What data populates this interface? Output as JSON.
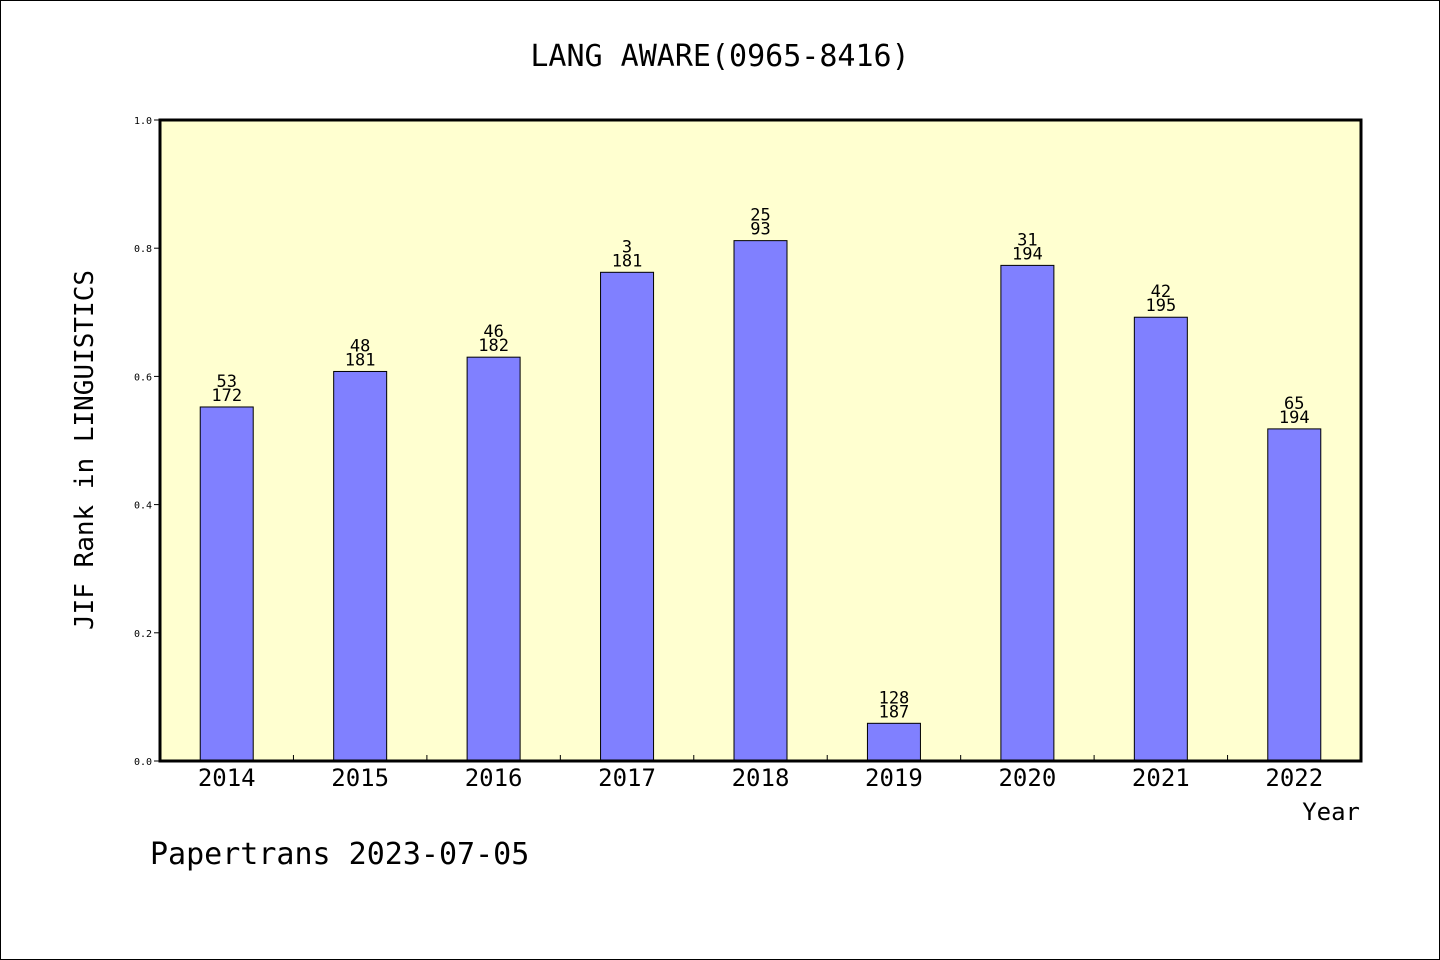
{
  "chart_data": {
    "type": "bar",
    "title": "LANG AWARE(0965-8416)",
    "xlabel": "Year",
    "ylabel": "JIF Rank in LINGUISTICS",
    "footer": "Papertrans 2023-07-05",
    "ylim": [
      0,
      1.0
    ],
    "yticks": [
      "0.0",
      "0.2",
      "0.4",
      "0.6",
      "0.8",
      "1.0"
    ],
    "categories": [
      "2014",
      "2015",
      "2016",
      "2017",
      "2018",
      "2019",
      "2020",
      "2021",
      "2022"
    ],
    "values": [
      0.5523,
      0.6077,
      0.63,
      0.7624,
      0.8118,
      0.0588,
      0.7732,
      0.6923,
      0.5181
    ],
    "rank": [
      "53",
      "48",
      "46",
      "3",
      "25",
      "128",
      "31",
      "42",
      "65"
    ],
    "total": [
      "172",
      "181",
      "182",
      "181",
      "93",
      "187",
      "194",
      "195",
      "194"
    ],
    "grid": false,
    "colors": {
      "bar": "#8080ff",
      "plot_background": "#ffffd0"
    }
  }
}
